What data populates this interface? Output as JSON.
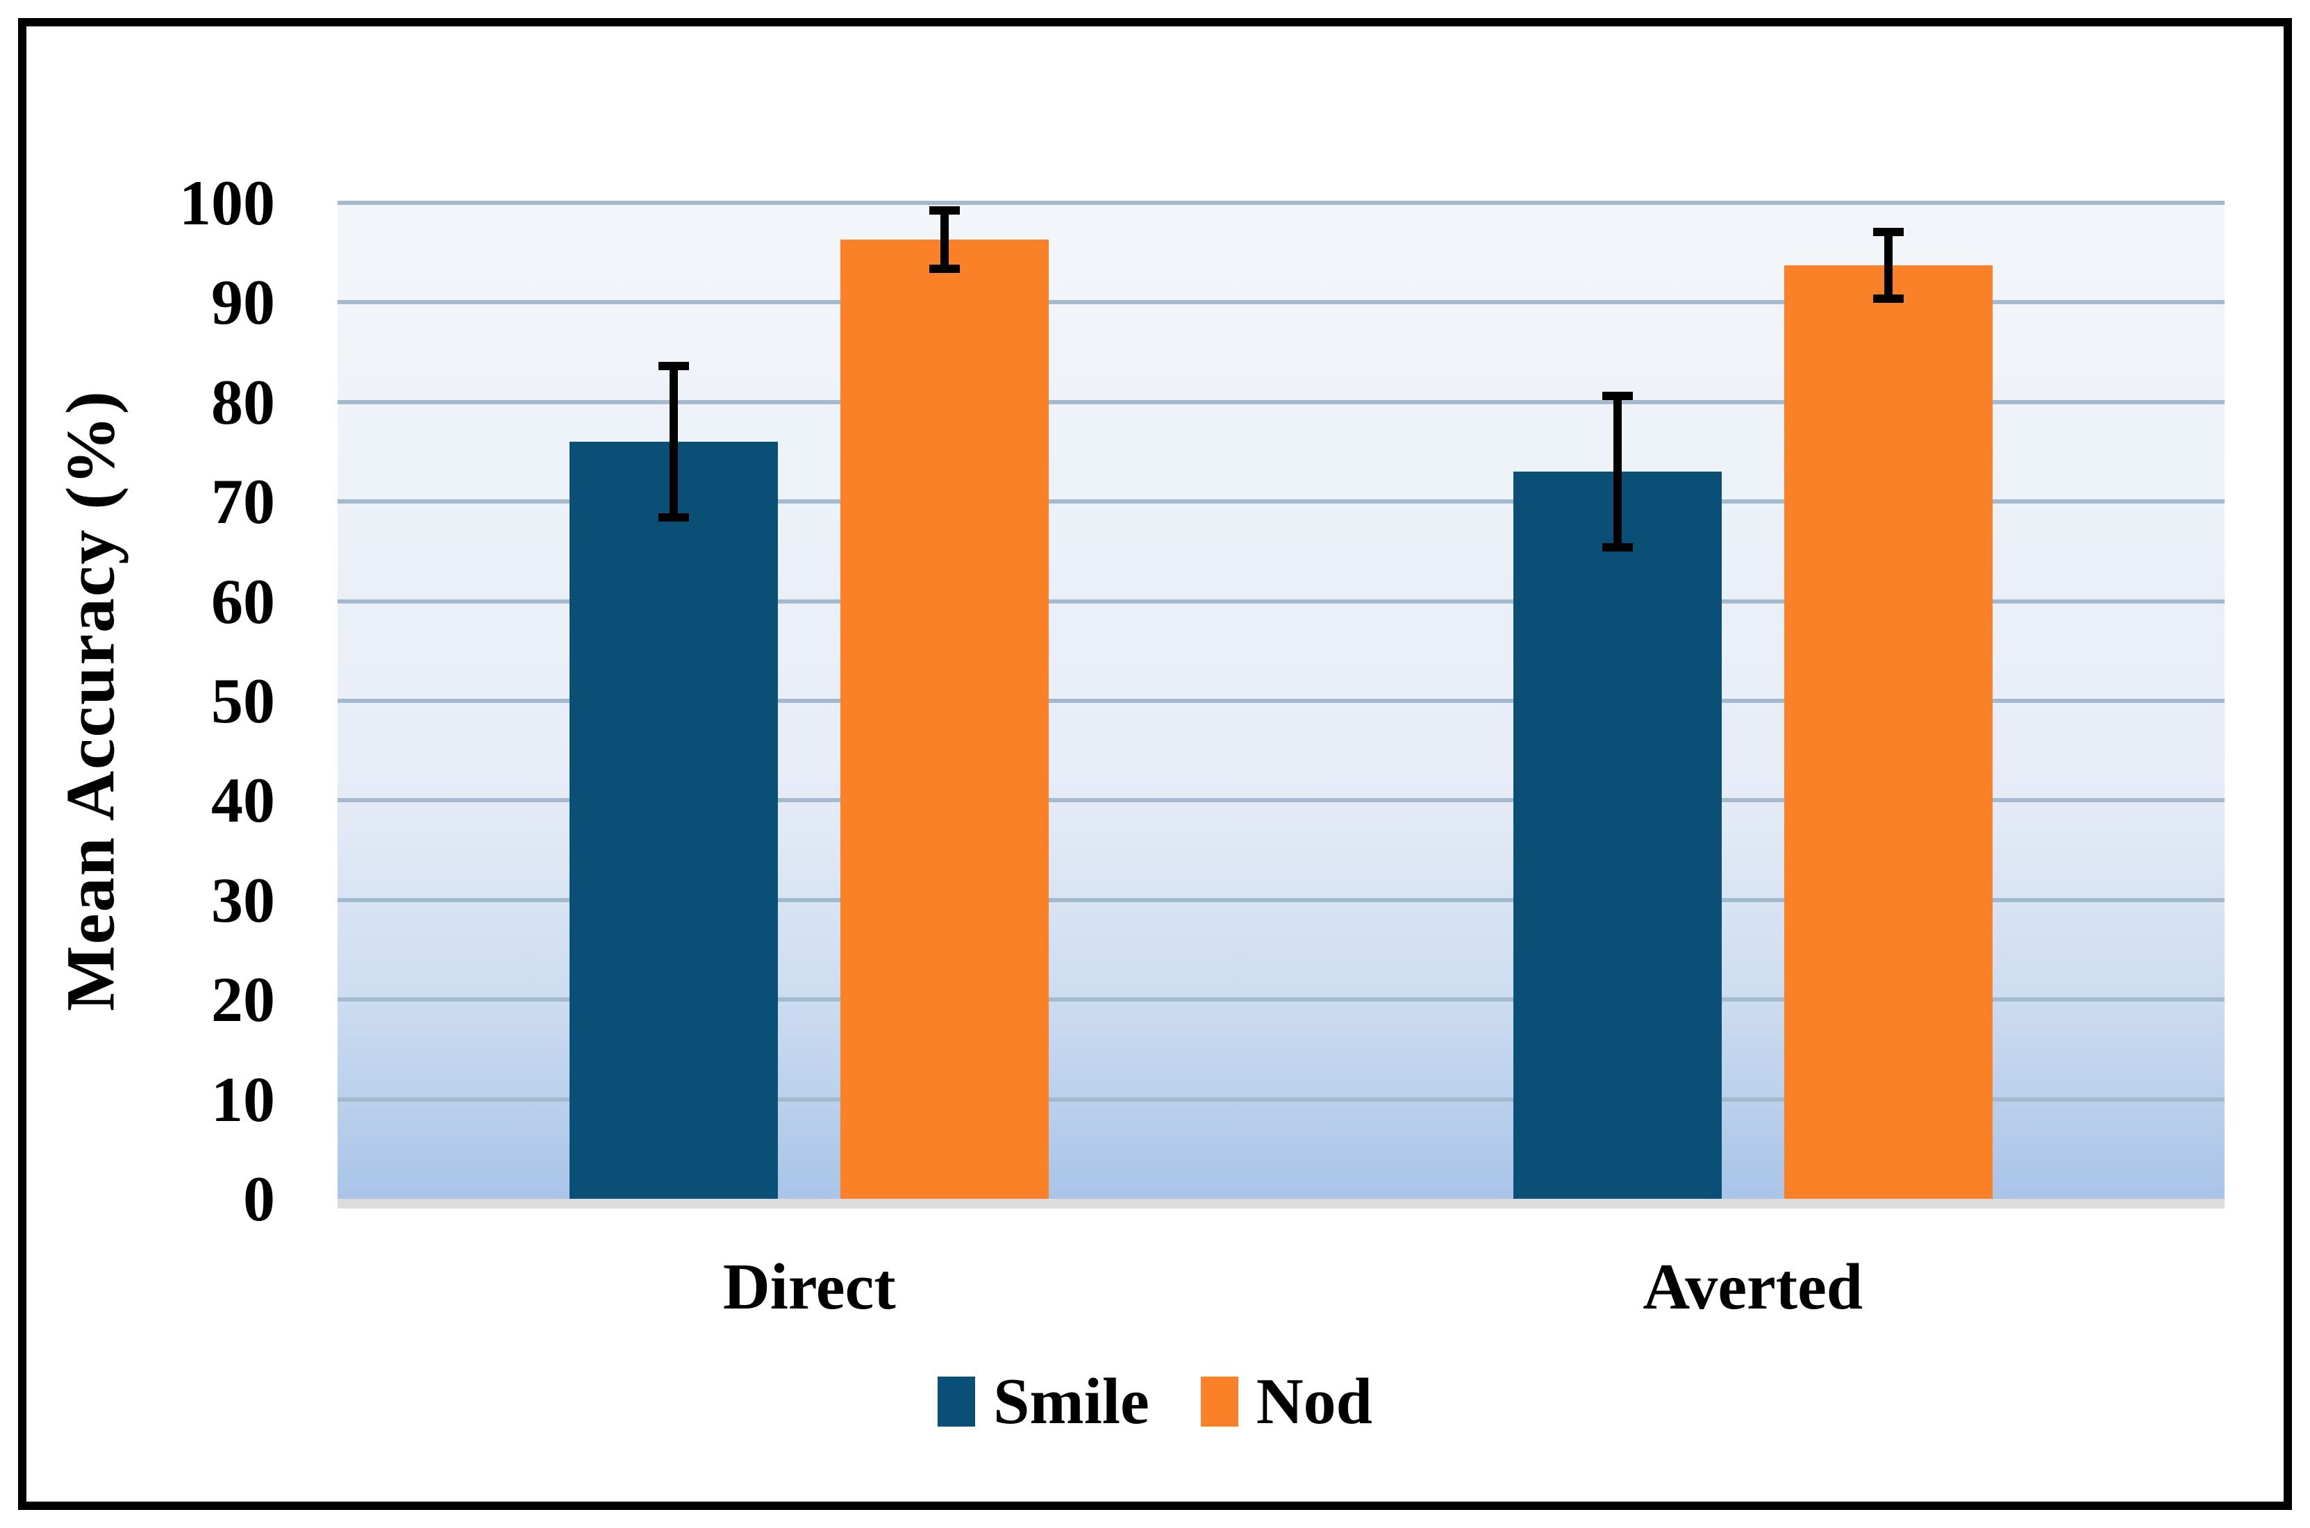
{
  "chart_data": {
    "type": "bar",
    "title": "",
    "categories": [
      "Direct",
      "Averted"
    ],
    "series": [
      {
        "name": "Smile",
        "color": "#0a4f76",
        "values": [
          76.0,
          73.0
        ],
        "error_low": [
          68.4,
          65.4
        ],
        "error_high": [
          83.6,
          80.6
        ]
      },
      {
        "name": "Nod",
        "color": "#fb8129",
        "values": [
          96.3,
          93.7
        ],
        "error_low": [
          93.4,
          90.4
        ],
        "error_high": [
          99.2,
          97.1
        ]
      }
    ],
    "xlabel": "",
    "ylabel": "Mean Accuracy (%)",
    "ylim": [
      0,
      100
    ],
    "yticks": [
      0,
      10,
      20,
      30,
      40,
      50,
      60,
      70,
      80,
      90,
      100
    ],
    "grid": true,
    "legend_position": "bottom",
    "styles": {
      "plot_bg_top": "#f3f6fa",
      "plot_bg_mid": "#e7edf7",
      "plot_bg_low": "#ccdcf0",
      "plot_bg_bottom": "#a9c4e7",
      "gridline_color": "#a2b9ce",
      "axis_line_color": "#dcdcdc",
      "error_bar_color": "#000000",
      "text_color": "#000000",
      "frame_color": "#000000"
    }
  }
}
